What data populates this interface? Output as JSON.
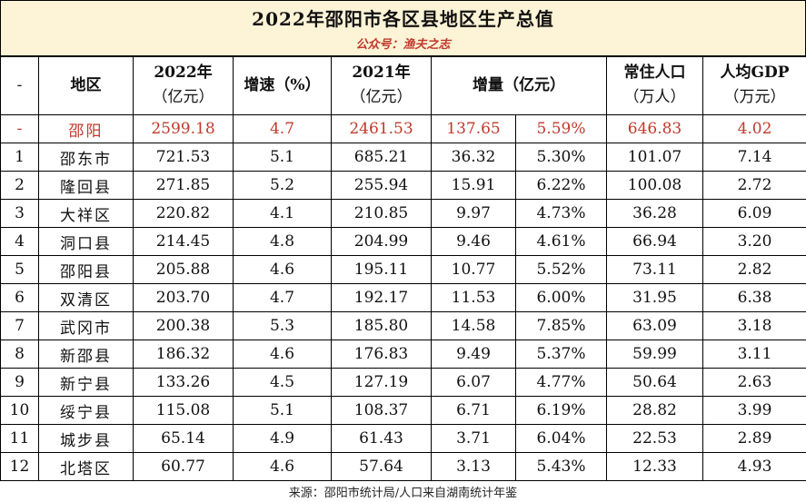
{
  "title": "2022年邵阳市各区县地区生产总值",
  "subtitle": "公众号：渔夫之志",
  "header": {
    "index": "-",
    "region": "地区",
    "gdp2022_line1": "2022年",
    "gdp2022_line2": "（亿元）",
    "growth": "增速（%）",
    "gdp2021_line1": "2021年",
    "gdp2021_line2": "（亿元）",
    "increase": "增量（亿元）",
    "pop_line1": "常住人口",
    "pop_line2": "（万人）",
    "percap_line1": "人均GDP",
    "percap_line2": "（万元）"
  },
  "rows": [
    {
      "idx": "-",
      "name": "邵阳",
      "gdp2022": "2599.18",
      "growth": "4.7",
      "gdp2021": "2461.53",
      "inc": "137.65",
      "inc_pct": "5.59%",
      "pop": "646.83",
      "percap": "4.02"
    },
    {
      "idx": "1",
      "name": "邵东市",
      "gdp2022": "721.53",
      "growth": "5.1",
      "gdp2021": "685.21",
      "inc": "36.32",
      "inc_pct": "5.30%",
      "pop": "101.07",
      "percap": "7.14"
    },
    {
      "idx": "2",
      "name": "隆回县",
      "gdp2022": "271.85",
      "growth": "5.2",
      "gdp2021": "255.94",
      "inc": "15.91",
      "inc_pct": "6.22%",
      "pop": "100.08",
      "percap": "2.72"
    },
    {
      "idx": "3",
      "name": "大祥区",
      "gdp2022": "220.82",
      "growth": "4.1",
      "gdp2021": "210.85",
      "inc": "9.97",
      "inc_pct": "4.73%",
      "pop": "36.28",
      "percap": "6.09"
    },
    {
      "idx": "4",
      "name": "洞口县",
      "gdp2022": "214.45",
      "growth": "4.8",
      "gdp2021": "204.99",
      "inc": "9.46",
      "inc_pct": "4.61%",
      "pop": "66.94",
      "percap": "3.20"
    },
    {
      "idx": "5",
      "name": "邵阳县",
      "gdp2022": "205.88",
      "growth": "4.6",
      "gdp2021": "195.11",
      "inc": "10.77",
      "inc_pct": "5.52%",
      "pop": "73.11",
      "percap": "2.82"
    },
    {
      "idx": "6",
      "name": "双清区",
      "gdp2022": "203.70",
      "growth": "4.7",
      "gdp2021": "192.17",
      "inc": "11.53",
      "inc_pct": "6.00%",
      "pop": "31.95",
      "percap": "6.38"
    },
    {
      "idx": "7",
      "name": "武冈市",
      "gdp2022": "200.38",
      "growth": "5.3",
      "gdp2021": "185.80",
      "inc": "14.58",
      "inc_pct": "7.85%",
      "pop": "63.09",
      "percap": "3.18"
    },
    {
      "idx": "8",
      "name": "新邵县",
      "gdp2022": "186.32",
      "growth": "4.6",
      "gdp2021": "176.83",
      "inc": "9.49",
      "inc_pct": "5.37%",
      "pop": "59.99",
      "percap": "3.11"
    },
    {
      "idx": "9",
      "name": "新宁县",
      "gdp2022": "133.26",
      "growth": "4.5",
      "gdp2021": "127.19",
      "inc": "6.07",
      "inc_pct": "4.77%",
      "pop": "50.64",
      "percap": "2.63"
    },
    {
      "idx": "10",
      "name": "绥宁县",
      "gdp2022": "115.08",
      "growth": "5.1",
      "gdp2021": "108.37",
      "inc": "6.71",
      "inc_pct": "6.19%",
      "pop": "28.82",
      "percap": "3.99"
    },
    {
      "idx": "11",
      "name": "城步县",
      "gdp2022": "65.14",
      "growth": "4.9",
      "gdp2021": "61.43",
      "inc": "3.71",
      "inc_pct": "6.04%",
      "pop": "22.53",
      "percap": "2.89"
    },
    {
      "idx": "12",
      "name": "北塔区",
      "gdp2022": "60.77",
      "growth": "4.6",
      "gdp2021": "57.64",
      "inc": "3.13",
      "inc_pct": "5.43%",
      "pop": "12.33",
      "percap": "4.93"
    }
  ],
  "footer": "来源：邵阳市统计局/人口来自湖南统计年鉴",
  "colors": {
    "title_background": "#fdf3d6",
    "highlight_red": "#c0392b",
    "border": "#000000"
  }
}
